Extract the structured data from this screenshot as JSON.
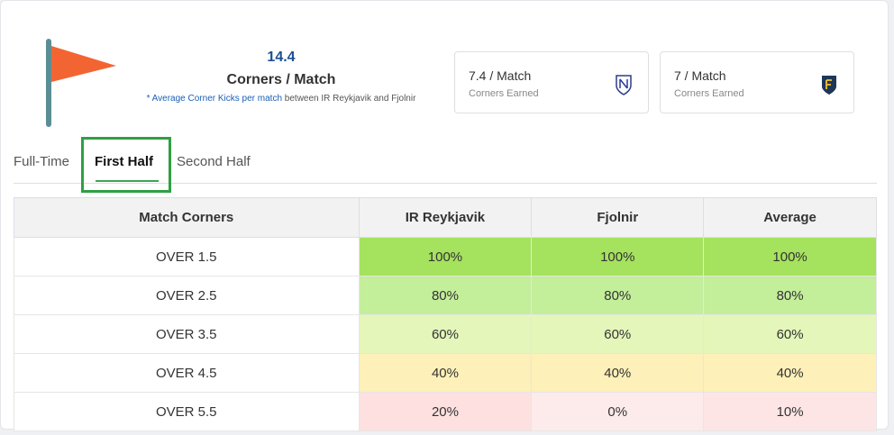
{
  "summary": {
    "value": "14.4",
    "label": "Corners / Match",
    "desc_highlight": "* Average Corner Kicks per match",
    "desc_rest": " between IR Reykjavik and Fjolnir"
  },
  "team_stats": [
    {
      "main": "7.4 / Match",
      "sub": "Corners Earned",
      "crest_icon": "ir-reykjavik-crest-icon"
    },
    {
      "main": "7 / Match",
      "sub": "Corners Earned",
      "crest_icon": "fjolnir-crest-icon"
    }
  ],
  "tabs": [
    {
      "label": "Full-Time",
      "active": false
    },
    {
      "label": "First Half",
      "active": true
    },
    {
      "label": "Second Half",
      "active": false
    }
  ],
  "table": {
    "headers": [
      "Match Corners",
      "IR Reykjavik",
      "Fjolnir",
      "Average"
    ],
    "rows": [
      {
        "label": "OVER 1.5",
        "cells": [
          "100%",
          "100%",
          "100%"
        ]
      },
      {
        "label": "OVER 2.5",
        "cells": [
          "80%",
          "80%",
          "80%"
        ]
      },
      {
        "label": "OVER 3.5",
        "cells": [
          "60%",
          "60%",
          "60%"
        ]
      },
      {
        "label": "OVER 4.5",
        "cells": [
          "40%",
          "40%",
          "40%"
        ]
      },
      {
        "label": "OVER 5.5",
        "cells": [
          "20%",
          "0%",
          "10%"
        ]
      }
    ]
  },
  "colors": {
    "p100": "#a5e25e",
    "p80": "#c3ee9a",
    "p60": "#e4f6b9",
    "p40": "#fdf0b8",
    "p20": "#fde0df",
    "p10": "#fde5e5",
    "p0": "#fdebeb",
    "flag": "#f26532",
    "pole": "#5b8e94",
    "accent": "#2ea043"
  }
}
